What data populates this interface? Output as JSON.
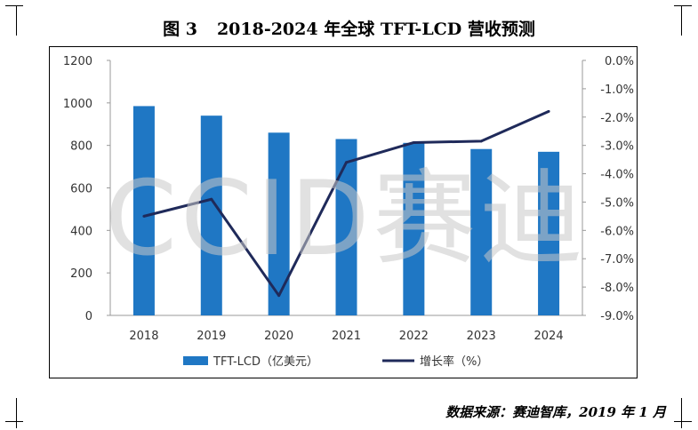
{
  "figure": {
    "number": "图 3",
    "title": "2018-2024 年全球 TFT-LCD 营收预测",
    "watermark": "CCID赛迪",
    "source": "数据来源：赛迪智库，2019 年 1 月"
  },
  "chart_data": {
    "type": "bar",
    "categories": [
      "2018",
      "2019",
      "2020",
      "2021",
      "2022",
      "2023",
      "2024"
    ],
    "series": [
      {
        "name": "TFT-LCD（亿美元）",
        "type": "bar",
        "axis": "left",
        "values": [
          985,
          940,
          860,
          830,
          812,
          783,
          770
        ]
      },
      {
        "name": "增长率（%）",
        "type": "line",
        "axis": "right",
        "values": [
          -5.5,
          -4.9,
          -8.3,
          -3.6,
          -2.9,
          -2.85,
          -1.8
        ]
      }
    ],
    "y_left": {
      "min": 0,
      "max": 1200,
      "ticks": [
        0,
        200,
        400,
        600,
        800,
        1000,
        1200
      ]
    },
    "y_right": {
      "min": -9.0,
      "max": 0.0,
      "ticks": [
        "0.0%",
        "-1.0%",
        "-2.0%",
        "-3.0%",
        "-4.0%",
        "-5.0%",
        "-6.0%",
        "-7.0%",
        "-8.0%",
        "-9.0%"
      ]
    },
    "legend": "bottom",
    "colors": {
      "bar": "#1f77c4",
      "line": "#1f2a5a"
    }
  }
}
